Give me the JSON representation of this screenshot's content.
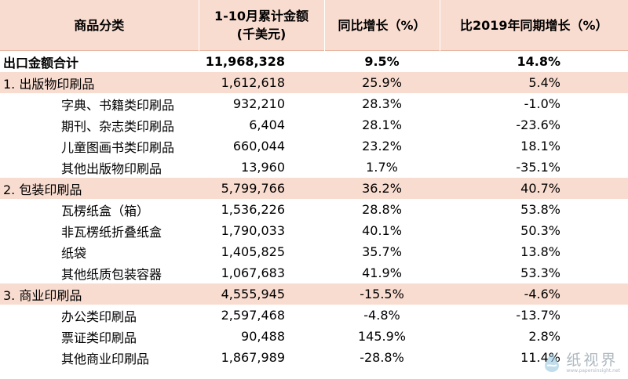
{
  "table": {
    "headers": [
      {
        "line1": "商品分类",
        "line2": ""
      },
      {
        "line1": "1-10月累计金额",
        "line2": "(千美元)"
      },
      {
        "line1": "同比增长（%）",
        "line2": ""
      },
      {
        "line1": "比2019年同期增长（%）",
        "line2": ""
      }
    ],
    "rows": [
      {
        "kind": "total",
        "name": "出口金额合计",
        "amount": "11,968,328",
        "yoy": "9.5%",
        "vs2019": "14.8%"
      },
      {
        "kind": "cat",
        "name": "1. 出版物印刷品",
        "amount": "1,612,618",
        "yoy": "25.9%",
        "vs2019": "5.4%"
      },
      {
        "kind": "sub",
        "name": "字典、书籍类印刷品",
        "amount": "932,210",
        "yoy": "28.3%",
        "vs2019": "-1.0%"
      },
      {
        "kind": "sub",
        "name": "期刊、杂志类印刷品",
        "amount": "6,404",
        "yoy": "28.1%",
        "vs2019": "-23.6%"
      },
      {
        "kind": "sub",
        "name": "儿童图画书类印刷品",
        "amount": "660,044",
        "yoy": "23.2%",
        "vs2019": "18.1%"
      },
      {
        "kind": "sub",
        "name": "其他出版物印刷品",
        "amount": "13,960",
        "yoy": "1.7%",
        "vs2019": "-35.1%"
      },
      {
        "kind": "cat",
        "name": "2. 包装印刷品",
        "amount": "5,799,766",
        "yoy": "36.2%",
        "vs2019": "40.7%"
      },
      {
        "kind": "sub",
        "name": "瓦楞纸盒（箱）",
        "amount": "1,536,226",
        "yoy": "28.8%",
        "vs2019": "53.8%"
      },
      {
        "kind": "sub",
        "name": "非瓦楞纸折叠纸盒",
        "amount": "1,790,033",
        "yoy": "40.1%",
        "vs2019": "50.3%"
      },
      {
        "kind": "sub",
        "name": "纸袋",
        "amount": "1,405,825",
        "yoy": "35.7%",
        "vs2019": "13.8%"
      },
      {
        "kind": "sub",
        "name": "其他纸质包装容器",
        "amount": "1,067,683",
        "yoy": "41.9%",
        "vs2019": "53.3%"
      },
      {
        "kind": "cat",
        "name": "3. 商业印刷品",
        "amount": "4,555,945",
        "yoy": "-15.5%",
        "vs2019": "-4.6%"
      },
      {
        "kind": "sub",
        "name": "办公类印刷品",
        "amount": "2,597,468",
        "yoy": "-4.8%",
        "vs2019": "-13.7%"
      },
      {
        "kind": "sub",
        "name": "票证类印刷品",
        "amount": "90,488",
        "yoy": "145.9%",
        "vs2019": "2.8%"
      },
      {
        "kind": "sub",
        "name": "其他商业印刷品",
        "amount": "1,867,989",
        "yoy": "-28.8%",
        "vs2019": "11.4%"
      }
    ]
  },
  "watermark": {
    "brand": "纸视界",
    "url": "www.papersinsight.net",
    "icon": "water-drop-logo-icon"
  },
  "colors": {
    "header_bg": "#f9dcd0",
    "category_bg": "#f9dcd0",
    "watermark": "#6d7f8c"
  }
}
